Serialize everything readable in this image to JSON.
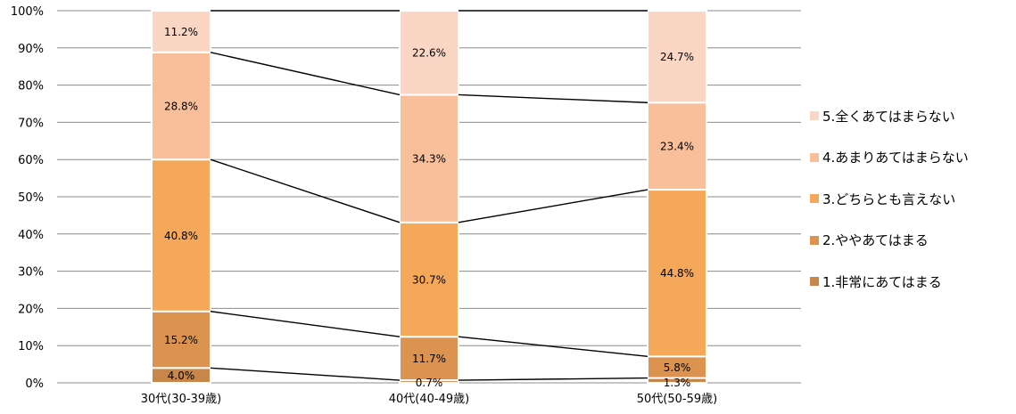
{
  "chart_data": {
    "type": "bar",
    "stacked": true,
    "percent": true,
    "categories": [
      "30代(30-39歳)",
      "40代(40-49歳)",
      "50代(50-59歳)"
    ],
    "series": [
      {
        "name": "1.非常にあてはまる",
        "values": [
          4.0,
          0.7,
          1.3
        ],
        "labels": [
          "4.0%",
          "0.7%",
          "1.3%"
        ],
        "color": "#c8864a"
      },
      {
        "name": "2.ややあてはまる",
        "values": [
          15.2,
          11.7,
          5.8
        ],
        "labels": [
          "15.2%",
          "11.7%",
          "5.8%"
        ],
        "color": "#dc9350"
      },
      {
        "name": "3.どちらとも言えない",
        "values": [
          40.8,
          30.7,
          44.8
        ],
        "labels": [
          "40.8%",
          "30.7%",
          "44.8%"
        ],
        "color": "#f6a85a"
      },
      {
        "name": "4.あまりあてはまらない",
        "values": [
          28.8,
          34.3,
          23.4
        ],
        "labels": [
          "28.8%",
          "34.3%",
          "23.4%"
        ],
        "color": "#f9bf9a"
      },
      {
        "name": "5.全くあてはまらない",
        "values": [
          11.2,
          22.6,
          24.7
        ],
        "labels": [
          "11.2%",
          "22.6%",
          "24.7%"
        ],
        "color": "#fcd6c5"
      }
    ],
    "y_ticks": [
      "0%",
      "10%",
      "20%",
      "30%",
      "40%",
      "50%",
      "60%",
      "70%",
      "80%",
      "90%",
      "100%"
    ],
    "ylim": [
      0,
      100
    ],
    "grid": true,
    "series_lines": true,
    "legend_position": "right"
  }
}
